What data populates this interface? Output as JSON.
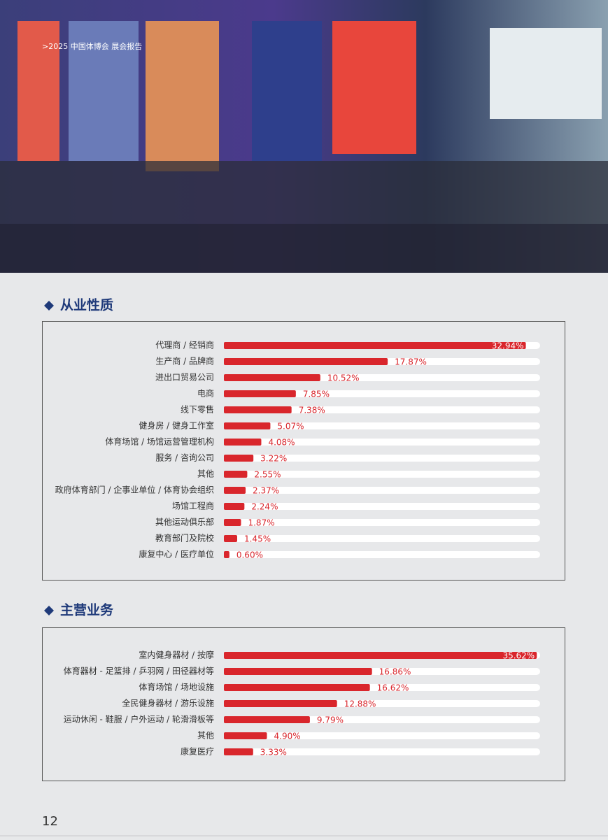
{
  "header": ">2025 中国体博会 展会报告",
  "page_number": "12",
  "chart_data": [
    {
      "type": "bar",
      "orientation": "horizontal",
      "title": "从业性质",
      "categories": [
        "代理商 / 经销商",
        "生产商 / 品牌商",
        "进出口贸易公司",
        "电商",
        "线下零售",
        "健身房 / 健身工作室",
        "体育场馆 / 场馆运营管理机构",
        "服务 / 咨询公司",
        "其他",
        "政府体育部门 / 企事业单位 / 体育协会组织",
        "场馆工程商",
        "其他运动俱乐部",
        "教育部门及院校",
        "康复中心 / 医疗单位"
      ],
      "values": [
        32.94,
        17.87,
        10.52,
        7.85,
        7.38,
        5.07,
        4.08,
        3.22,
        2.55,
        2.37,
        2.24,
        1.87,
        1.45,
        0.6
      ],
      "value_labels": [
        "32.94%",
        "17.87%",
        "10.52%",
        "7.85%",
        "7.38%",
        "5.07%",
        "4.08%",
        "3.22%",
        "2.55%",
        "2.37%",
        "2.24%",
        "1.87%",
        "1.45%",
        "0.60%"
      ],
      "color": "#d9262c",
      "xlim": [
        0,
        34.5
      ]
    },
    {
      "type": "bar",
      "orientation": "horizontal",
      "title": "主营业务",
      "categories": [
        "室内健身器材 / 按摩",
        "体育器材 - 足篮排 / 乒羽网 / 田径器材等",
        "体育场馆 / 场地设施",
        "全民健身器材 / 游乐设施",
        "运动休闲 - 鞋服 / 户外运动 / 轮滑滑板等",
        "其他",
        "康复医疗"
      ],
      "values": [
        35.62,
        16.86,
        16.62,
        12.88,
        9.79,
        4.9,
        3.33
      ],
      "value_labels": [
        "35.62%",
        "16.86%",
        "16.62%",
        "12.88%",
        "9.79%",
        "4.90%",
        "3.33%"
      ],
      "color": "#d9262c",
      "xlim": [
        0,
        36
      ]
    }
  ]
}
